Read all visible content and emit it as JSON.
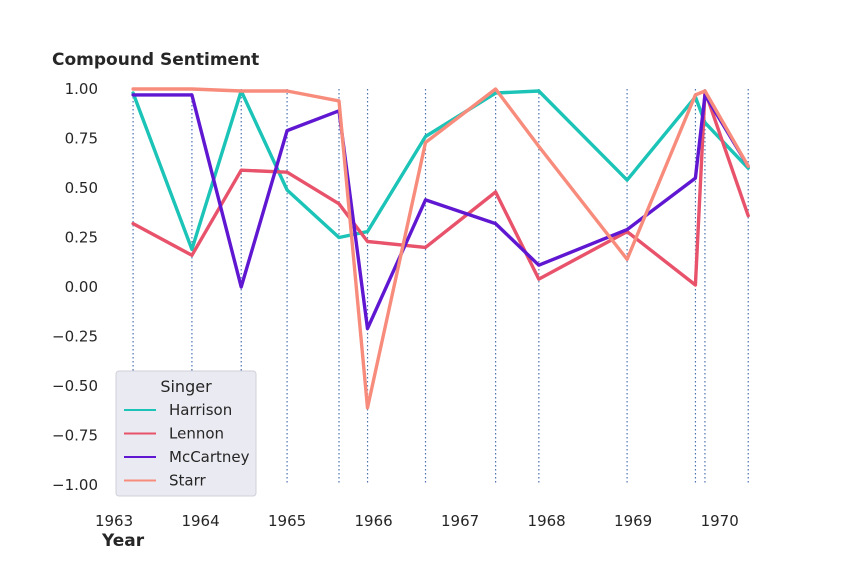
{
  "chart_data": {
    "type": "line",
    "ylabel": "Compound Sentiment",
    "xlabel": "Year",
    "xlim": [
      1962.93,
      1970.42
    ],
    "ylim": [
      -1.0,
      1.0
    ],
    "xticks": [
      "1963",
      "1964",
      "1965",
      "1966",
      "1967",
      "1968",
      "1969",
      "1970"
    ],
    "yticks": [
      "1.00",
      "0.75",
      "0.50",
      "0.25",
      "0.00",
      "−0.25",
      "−0.50",
      "−0.75",
      "−1.00"
    ],
    "ytick_values": [
      1.0,
      0.75,
      0.5,
      0.25,
      0.0,
      -0.25,
      -0.5,
      -0.75,
      -1.0
    ],
    "grid": false,
    "vlines": [
      1963.22,
      1963.9,
      1964.47,
      1965.0,
      1965.6,
      1965.93,
      1966.6,
      1967.41,
      1967.91,
      1968.93,
      1969.72,
      1969.83,
      1970.33
    ],
    "legend": {
      "title": "Singer",
      "placement": "bottom-left"
    },
    "series": [
      {
        "name": "Harrison",
        "color": "#1bc4b7",
        "x": [
          1963.22,
          1963.9,
          1964.47,
          1965.0,
          1965.6,
          1965.93,
          1966.6,
          1967.41,
          1967.91,
          1968.93,
          1969.72,
          1969.83,
          1970.33
        ],
        "values": [
          0.98,
          0.19,
          0.99,
          0.49,
          0.25,
          0.28,
          0.76,
          0.98,
          0.99,
          0.54,
          0.96,
          0.83,
          0.6
        ]
      },
      {
        "name": "Lennon",
        "color": "#e8536b",
        "x": [
          1963.22,
          1963.9,
          1964.47,
          1965.0,
          1965.6,
          1965.93,
          1966.6,
          1967.41,
          1967.91,
          1968.93,
          1969.72,
          1969.83,
          1970.33
        ],
        "values": [
          0.32,
          0.16,
          0.59,
          0.58,
          0.42,
          0.23,
          0.2,
          0.48,
          0.04,
          0.28,
          0.01,
          0.99,
          0.36
        ]
      },
      {
        "name": "McCartney",
        "color": "#5f17d1",
        "x": [
          1963.22,
          1963.9,
          1964.47,
          1965.0,
          1965.6,
          1965.93,
          1966.6,
          1967.41,
          1967.91,
          1968.93,
          1969.72,
          1969.83,
          1970.33
        ],
        "values": [
          0.97,
          0.97,
          0.0,
          0.79,
          0.89,
          -0.21,
          0.44,
          0.32,
          0.11,
          0.29,
          0.55,
          0.97,
          0.61
        ]
      },
      {
        "name": "Starr",
        "color": "#f88c7c",
        "x": [
          1963.22,
          1963.9,
          1964.47,
          1965.0,
          1965.6,
          1965.93,
          1966.6,
          1967.41,
          1967.91,
          1968.93,
          1969.72,
          1969.83,
          1970.33
        ],
        "values": [
          1.0,
          1.0,
          0.99,
          0.99,
          0.94,
          -0.61,
          0.73,
          1.0,
          0.71,
          0.14,
          0.97,
          0.99,
          0.61
        ]
      }
    ]
  }
}
